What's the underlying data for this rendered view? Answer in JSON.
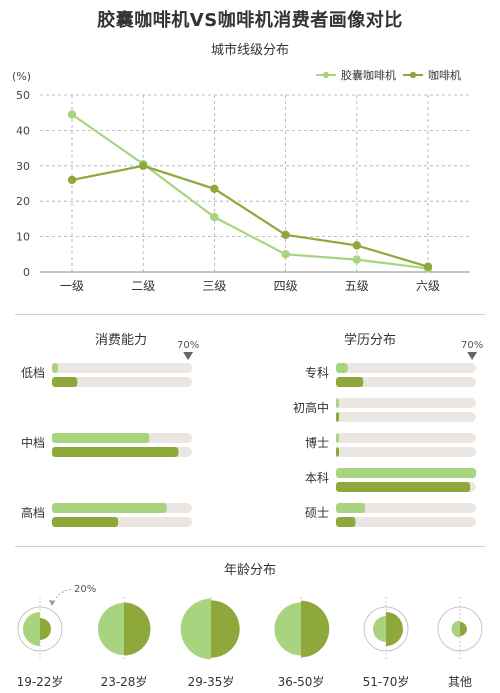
{
  "title": "胶囊咖啡机VS咖啡机消费者画像对比",
  "colors": {
    "capsule": "#a9d47f",
    "machine": "#8ea83c",
    "track": "#ebe6e1",
    "grid": "#aaaaaa",
    "marker": "#666666"
  },
  "chart_data": [
    {
      "type": "line",
      "title": "城市线级分布",
      "ylabel": "(%)",
      "categories": [
        "一级",
        "二级",
        "三级",
        "四级",
        "五级",
        "六级"
      ],
      "ylim": [
        0,
        50
      ],
      "yticks": [
        0,
        10,
        20,
        30,
        40,
        50
      ],
      "grid": true,
      "legend": "top-right",
      "series": [
        {
          "name": "胶囊咖啡机",
          "values": [
            44.5,
            30.5,
            15.5,
            5,
            3.5,
            1
          ]
        },
        {
          "name": "咖啡机",
          "values": [
            26,
            30,
            23.5,
            10.5,
            7.5,
            1.5
          ]
        }
      ]
    },
    {
      "type": "bar",
      "title": "消费能力",
      "marker_label": "70%",
      "marker_value": 70,
      "categories": [
        "低档",
        "中档",
        "高档"
      ],
      "series": [
        {
          "name": "胶囊咖啡机",
          "values": [
            3,
            50,
            59
          ]
        },
        {
          "name": "咖啡机",
          "values": [
            13,
            65,
            34
          ]
        }
      ]
    },
    {
      "type": "bar",
      "title": "学历分布",
      "marker_label": "70%",
      "marker_value": 70,
      "categories": [
        "专科",
        "初高中",
        "博士",
        "本科",
        "硕士"
      ],
      "series": [
        {
          "name": "胶囊咖啡机",
          "values": [
            6,
            1,
            1,
            72,
            15
          ]
        },
        {
          "name": "咖啡机",
          "values": [
            14,
            1,
            1,
            69,
            10
          ]
        }
      ]
    },
    {
      "type": "pie",
      "title": "年龄分布",
      "reference_label": "20%",
      "reference_value": 20,
      "categories": [
        "19-22岁",
        "23-28岁",
        "29-35岁",
        "36-50岁",
        "51-70岁",
        "其他"
      ],
      "series": [
        {
          "name": "胶囊咖啡机",
          "values": [
            12,
            28,
            38,
            29,
            7,
            3
          ]
        },
        {
          "name": "咖啡机",
          "values": [
            5,
            29,
            34,
            33,
            12,
            2
          ]
        }
      ]
    }
  ]
}
